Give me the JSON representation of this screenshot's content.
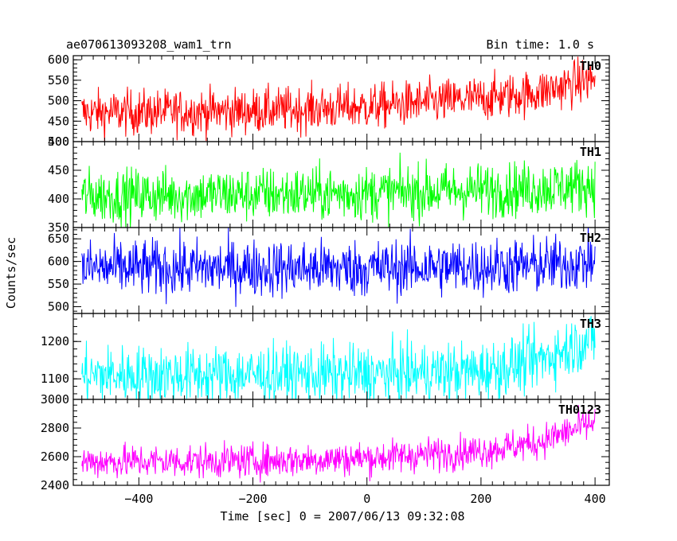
{
  "header": {
    "title": "ae070613093208_wam1_trn",
    "bin_time": "Bin time: 1.0 s"
  },
  "chart_data": {
    "type": "line",
    "title": "ae070613093208_wam1_trn",
    "xlabel": "Time [sec] 0 = 2007/06/13 09:32:08",
    "ylabel": "Counts/sec",
    "xlim": [
      -515,
      425
    ],
    "x_ticks": [
      -400,
      -200,
      0,
      200,
      400
    ],
    "x_tick_labels": [
      "−400",
      "−200",
      "0",
      "200",
      "400"
    ],
    "panels": [
      {
        "name": "TH0",
        "color": "#ff0000",
        "ylim": [
          400,
          610
        ],
        "y_ticks": [
          400,
          450,
          500,
          550,
          600
        ],
        "y_tick_labels": [
          "400",
          "450",
          "500",
          "550",
          "600"
        ],
        "x_range": [
          -500,
          400
        ],
        "trend": [
          [
            -500,
            470
          ],
          [
            -200,
            475
          ],
          [
            0,
            485
          ],
          [
            200,
            505
          ],
          [
            300,
            520
          ],
          [
            400,
            555
          ]
        ],
        "noise": 28
      },
      {
        "name": "TH1",
        "color": "#00ff00",
        "ylim": [
          350,
          500
        ],
        "y_ticks": [
          350,
          400,
          450,
          500
        ],
        "y_tick_labels": [
          "350",
          "400",
          "450",
          "500"
        ],
        "x_range": [
          -500,
          400
        ],
        "trend": [
          [
            -500,
            405
          ],
          [
            0,
            410
          ],
          [
            300,
            418
          ],
          [
            400,
            425
          ]
        ],
        "noise": 24
      },
      {
        "name": "TH2",
        "color": "#0000ff",
        "ylim": [
          485,
          675
        ],
        "y_ticks": [
          500,
          550,
          600,
          650
        ],
        "y_tick_labels": [
          "500",
          "550",
          "600",
          "650"
        ],
        "x_range": [
          -500,
          400
        ],
        "trend": [
          [
            -500,
            585
          ],
          [
            0,
            585
          ],
          [
            300,
            590
          ],
          [
            400,
            600
          ]
        ],
        "noise": 32
      },
      {
        "name": "TH3",
        "color": "#00ffff",
        "ylim": [
          1045,
          1275
        ],
        "y_ticks": [
          1100,
          1200
        ],
        "y_tick_labels": [
          "1100",
          "1200"
        ],
        "x_range": [
          -500,
          400
        ],
        "trend": [
          [
            -500,
            1110
          ],
          [
            0,
            1112
          ],
          [
            200,
            1120
          ],
          [
            300,
            1150
          ],
          [
            400,
            1210
          ]
        ],
        "noise": 40
      },
      {
        "name": "TH0123",
        "color": "#ff00ff",
        "ylim": [
          2400,
          3000
        ],
        "y_ticks": [
          2400,
          2600,
          2800,
          3000
        ],
        "y_tick_labels": [
          "2400",
          "2600",
          "2800",
          "3000"
        ],
        "x_range": [
          -500,
          400
        ],
        "trend": [
          [
            -500,
            2565
          ],
          [
            -200,
            2570
          ],
          [
            0,
            2590
          ],
          [
            200,
            2640
          ],
          [
            300,
            2700
          ],
          [
            400,
            2840
          ]
        ],
        "noise": 60
      }
    ]
  }
}
